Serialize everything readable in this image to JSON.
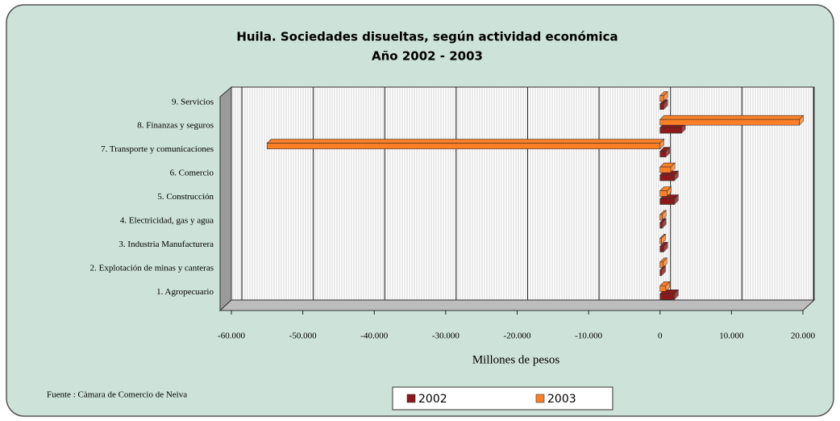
{
  "chart_data": {
    "type": "bar",
    "orientation": "horizontal",
    "title": "Huila. Sociedades disueltas, según actividad económica",
    "subtitle": "Año 2002 - 2003",
    "x_label": "Millones de pesos",
    "source": "Fuente : Càmara de Comercio de Neiva",
    "categories": [
      "1. Agropecuario",
      "2. Explotación de minas y canteras",
      "3. Industria Manufacturera",
      "4. Electricidad, gas y agua",
      "5. Construcción",
      "6. Comercio",
      "7. Transporte y comunicaciones",
      "8. Finanzas y seguros",
      "9. Servicios"
    ],
    "series": [
      {
        "name": "2002",
        "color": "#8b1a1a",
        "values": [
          2000,
          200,
          500,
          300,
          2000,
          2000,
          800,
          3000,
          500
        ]
      },
      {
        "name": "2003",
        "color": "#ff7f27",
        "values": [
          800,
          400,
          200,
          300,
          1000,
          1500,
          -55000,
          19500,
          500
        ]
      }
    ],
    "xlim": [
      -60000,
      20000
    ],
    "xticks": [
      {
        "value": -60000,
        "label": "-60.000"
      },
      {
        "value": -50000,
        "label": "-50.000"
      },
      {
        "value": -40000,
        "label": "-40.000"
      },
      {
        "value": -30000,
        "label": "-30.000"
      },
      {
        "value": -20000,
        "label": "-20.000"
      },
      {
        "value": -10000,
        "label": "-10.000"
      },
      0,
      {
        "value": 10000,
        "label": "10.000"
      },
      {
        "value": 20000,
        "label": "20.000"
      }
    ],
    "grid": true
  }
}
